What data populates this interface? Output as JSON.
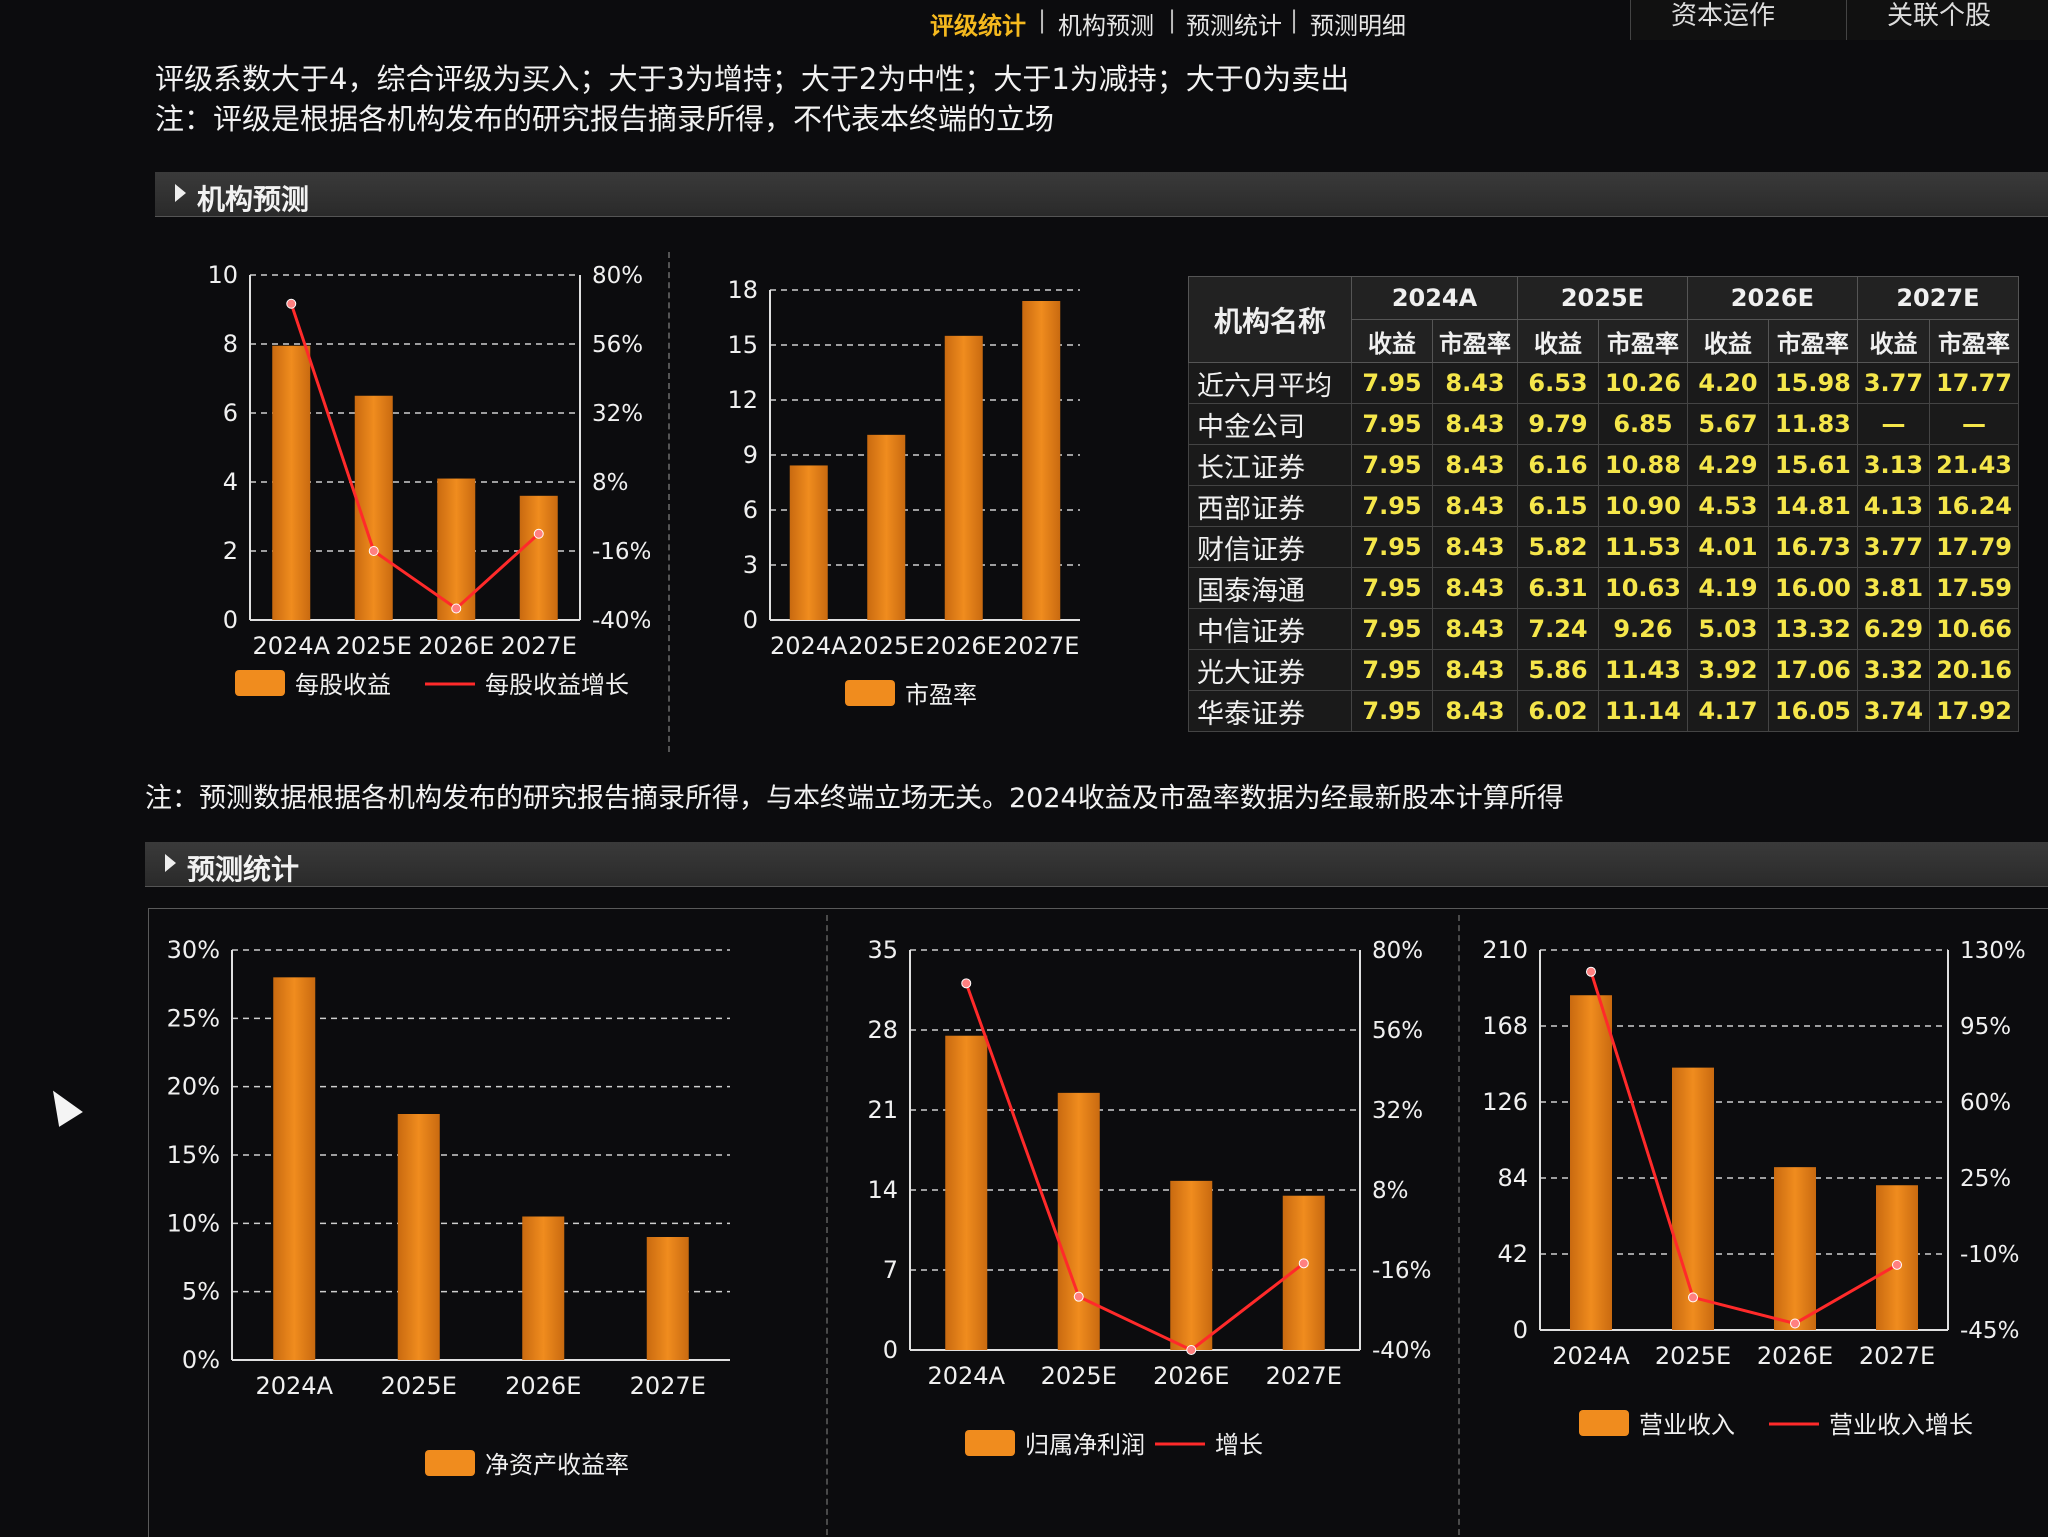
{
  "nav": {
    "tabs": [
      "评级统计",
      "机构预测",
      "预测统计",
      "预测明细"
    ],
    "right_tabs": [
      "资本运作",
      "关联个股"
    ]
  },
  "notes": {
    "rating_line1": "评级系数大于4，综合评级为买入；大于3为增持；大于2为中性；大于1为减持；大于0为卖出",
    "rating_line2": "注：评级是根据各机构发布的研究报告摘录所得，不代表本终端的立场",
    "forecast_note": "注：预测数据根据各机构发布的研究报告摘录所得，与本终端立场无关。2024收益及市盈率数据为经最新股本计算所得"
  },
  "sections": {
    "institution_forecast": "机构预测",
    "forecast_stats": "预测统计"
  },
  "colors": {
    "bar": "#f08c1e",
    "line": "#ff2a2a",
    "accent": "#f5b91e",
    "table_value": "#f5e64a"
  },
  "chart_data": [
    {
      "id": "eps",
      "type": "bar",
      "categories": [
        "2024A",
        "2025E",
        "2026E",
        "2027E"
      ],
      "series": [
        {
          "name": "每股收益",
          "type": "bar",
          "axis": "left",
          "values": [
            7.95,
            6.5,
            4.1,
            3.6
          ]
        },
        {
          "name": "每股收益增长",
          "type": "line",
          "axis": "right",
          "values": [
            70,
            -16,
            -36,
            -10
          ]
        }
      ],
      "left_ticks": [
        "0",
        "2",
        "4",
        "6",
        "8",
        "10"
      ],
      "right_ticks": [
        "-40%",
        "-16%",
        "8%",
        "32%",
        "56%",
        "80%"
      ],
      "ylim": [
        0,
        10
      ],
      "y2lim": [
        -40,
        80
      ],
      "grid": true,
      "legend": "bottom"
    },
    {
      "id": "pe",
      "type": "bar",
      "categories": [
        "2024A",
        "2025E",
        "2026E",
        "2027E"
      ],
      "series": [
        {
          "name": "市盈率",
          "type": "bar",
          "axis": "left",
          "values": [
            8.43,
            10.1,
            15.5,
            17.4
          ]
        }
      ],
      "left_ticks": [
        "0",
        "3",
        "6",
        "9",
        "12",
        "15",
        "18"
      ],
      "ylim": [
        0,
        18
      ],
      "grid": true,
      "legend": "bottom"
    },
    {
      "id": "roe",
      "type": "bar",
      "categories": [
        "2024A",
        "2025E",
        "2026E",
        "2027E"
      ],
      "series": [
        {
          "name": "净资产收益率",
          "type": "bar",
          "axis": "left",
          "values": [
            28,
            18,
            10.5,
            9
          ]
        }
      ],
      "left_ticks": [
        "0%",
        "5%",
        "10%",
        "15%",
        "20%",
        "25%",
        "30%"
      ],
      "ylim": [
        0,
        30
      ],
      "grid": true,
      "legend": "bottom"
    },
    {
      "id": "net_profit",
      "type": "bar",
      "categories": [
        "2024A",
        "2025E",
        "2026E",
        "2027E"
      ],
      "series": [
        {
          "name": "归属净利润",
          "type": "bar",
          "axis": "left",
          "values": [
            27.5,
            22.5,
            14.8,
            13.5
          ]
        },
        {
          "name": "增长",
          "type": "line",
          "axis": "right",
          "values": [
            70,
            -24,
            -40,
            -14
          ]
        }
      ],
      "left_ticks": [
        "0",
        "7",
        "14",
        "21",
        "28",
        "35"
      ],
      "right_ticks": [
        "-40%",
        "-16%",
        "8%",
        "32%",
        "56%",
        "80%"
      ],
      "ylim": [
        0,
        35
      ],
      "y2lim": [
        -40,
        80
      ],
      "grid": true,
      "legend": "bottom"
    },
    {
      "id": "revenue",
      "type": "bar",
      "categories": [
        "2024A",
        "2025E",
        "2026E",
        "2027E"
      ],
      "series": [
        {
          "name": "营业收入",
          "type": "bar",
          "axis": "left",
          "values": [
            185,
            145,
            90,
            80
          ]
        },
        {
          "name": "营业收入增长",
          "type": "line",
          "axis": "right",
          "values": [
            120,
            -30,
            -42,
            -15
          ]
        }
      ],
      "left_ticks": [
        "0",
        "42",
        "84",
        "126",
        "168",
        "210"
      ],
      "right_ticks": [
        "-45%",
        "-10%",
        "25%",
        "60%",
        "95%",
        "130%"
      ],
      "ylim": [
        0,
        210
      ],
      "y2lim": [
        -45,
        130
      ],
      "grid": true,
      "legend": "bottom"
    }
  ],
  "table": {
    "name_header": "机构名称",
    "years": [
      "2024A",
      "2025E",
      "2026E",
      "2027E"
    ],
    "sub_headers": [
      "收益",
      "市盈率"
    ],
    "rows": [
      {
        "name": "近六月平均",
        "values": [
          "7.95",
          "8.43",
          "6.53",
          "10.26",
          "4.20",
          "15.98",
          "3.77",
          "17.77"
        ]
      },
      {
        "name": "中金公司",
        "values": [
          "7.95",
          "8.43",
          "9.79",
          "6.85",
          "5.67",
          "11.83",
          "—",
          "—"
        ]
      },
      {
        "name": "长江证券",
        "values": [
          "7.95",
          "8.43",
          "6.16",
          "10.88",
          "4.29",
          "15.61",
          "3.13",
          "21.43"
        ]
      },
      {
        "name": "西部证券",
        "values": [
          "7.95",
          "8.43",
          "6.15",
          "10.90",
          "4.53",
          "14.81",
          "4.13",
          "16.24"
        ]
      },
      {
        "name": "财信证券",
        "values": [
          "7.95",
          "8.43",
          "5.82",
          "11.53",
          "4.01",
          "16.73",
          "3.77",
          "17.79"
        ]
      },
      {
        "name": "国泰海通",
        "values": [
          "7.95",
          "8.43",
          "6.31",
          "10.63",
          "4.19",
          "16.00",
          "3.81",
          "17.59"
        ]
      },
      {
        "name": "中信证券",
        "values": [
          "7.95",
          "8.43",
          "7.24",
          "9.26",
          "5.03",
          "13.32",
          "6.29",
          "10.66"
        ]
      },
      {
        "name": "光大证券",
        "values": [
          "7.95",
          "8.43",
          "5.86",
          "11.43",
          "3.92",
          "17.06",
          "3.32",
          "20.16"
        ]
      },
      {
        "name": "华泰证券",
        "values": [
          "7.95",
          "8.43",
          "6.02",
          "11.14",
          "4.17",
          "16.05",
          "3.74",
          "17.92"
        ]
      }
    ]
  }
}
